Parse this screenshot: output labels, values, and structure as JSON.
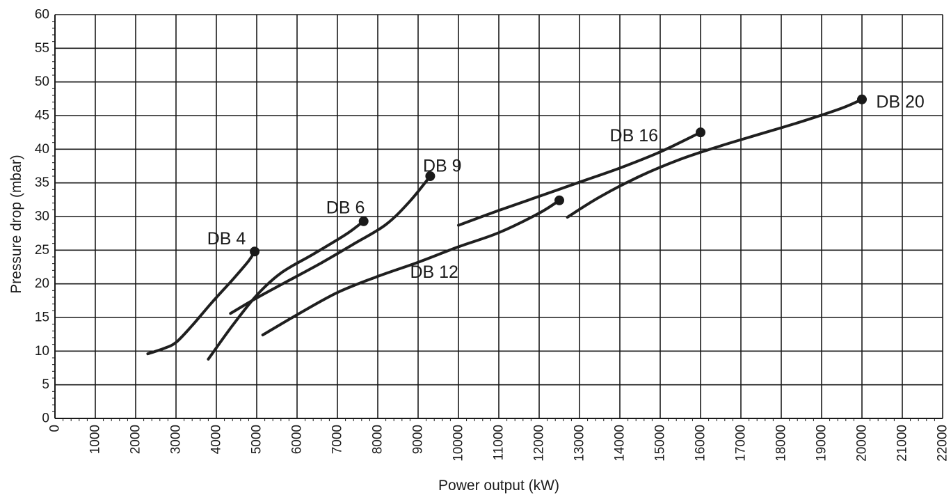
{
  "chart_data": {
    "type": "line",
    "title": "",
    "xlabel": "Power output (kW)",
    "ylabel": "Pressure drop (mbar)",
    "xlim": [
      0,
      22000
    ],
    "ylim": [
      0,
      60
    ],
    "x_ticks": [
      0,
      1000,
      2000,
      3000,
      4000,
      5000,
      6000,
      7000,
      8000,
      9000,
      10000,
      11000,
      12000,
      13000,
      14000,
      15000,
      16000,
      17000,
      18000,
      19000,
      20000,
      21000,
      22000
    ],
    "y_ticks": [
      0,
      5,
      10,
      15,
      20,
      25,
      30,
      35,
      40,
      45,
      50,
      55,
      60
    ],
    "grid": true,
    "legend": "none",
    "series": [
      {
        "name": "DB 4",
        "label_at": [
          4250,
          26.7
        ],
        "end_marker": true,
        "points": [
          [
            2300,
            9.6
          ],
          [
            2700,
            10.4
          ],
          [
            3000,
            11.3
          ],
          [
            3400,
            13.8
          ],
          [
            3900,
            17.3
          ],
          [
            4400,
            20.6
          ],
          [
            4800,
            23.4
          ],
          [
            4950,
            24.8
          ]
        ]
      },
      {
        "name": "DB 6",
        "label_at": [
          7200,
          31.3
        ],
        "end_marker": true,
        "points": [
          [
            3800,
            8.8
          ],
          [
            4400,
            13.8
          ],
          [
            5000,
            18.3
          ],
          [
            5600,
            21.6
          ],
          [
            6400,
            24.4
          ],
          [
            7200,
            27.3
          ],
          [
            7650,
            29.3
          ]
        ]
      },
      {
        "name": "DB 9",
        "label_at": [
          9600,
          37.5
        ],
        "end_marker": true,
        "points": [
          [
            4350,
            15.6
          ],
          [
            5000,
            17.9
          ],
          [
            5800,
            20.5
          ],
          [
            6600,
            23.1
          ],
          [
            7400,
            25.9
          ],
          [
            8200,
            28.8
          ],
          [
            8800,
            32.3
          ],
          [
            9300,
            36.0
          ]
        ]
      },
      {
        "name": "DB 12",
        "label_at": [
          9400,
          21.7
        ],
        "end_marker": true,
        "points": [
          [
            5150,
            12.4
          ],
          [
            6000,
            15.4
          ],
          [
            7000,
            18.7
          ],
          [
            8000,
            21.1
          ],
          [
            9000,
            23.2
          ],
          [
            10000,
            25.5
          ],
          [
            11000,
            27.6
          ],
          [
            12000,
            30.5
          ],
          [
            12500,
            32.4
          ]
        ]
      },
      {
        "name": "DB 16",
        "label_at": [
          14350,
          42.0
        ],
        "end_marker": true,
        "points": [
          [
            10000,
            28.7
          ],
          [
            11000,
            30.9
          ],
          [
            12000,
            33.0
          ],
          [
            13000,
            35.1
          ],
          [
            14000,
            37.2
          ],
          [
            15000,
            39.6
          ],
          [
            16000,
            42.5
          ]
        ]
      },
      {
        "name": "DB 20",
        "label_at": [
          20950,
          47.0
        ],
        "end_marker": true,
        "points": [
          [
            12700,
            29.9
          ],
          [
            13500,
            32.9
          ],
          [
            14500,
            36.0
          ],
          [
            15500,
            38.5
          ],
          [
            16500,
            40.5
          ],
          [
            17500,
            42.3
          ],
          [
            18500,
            44.1
          ],
          [
            19500,
            46.1
          ],
          [
            20000,
            47.4
          ]
        ]
      }
    ]
  }
}
